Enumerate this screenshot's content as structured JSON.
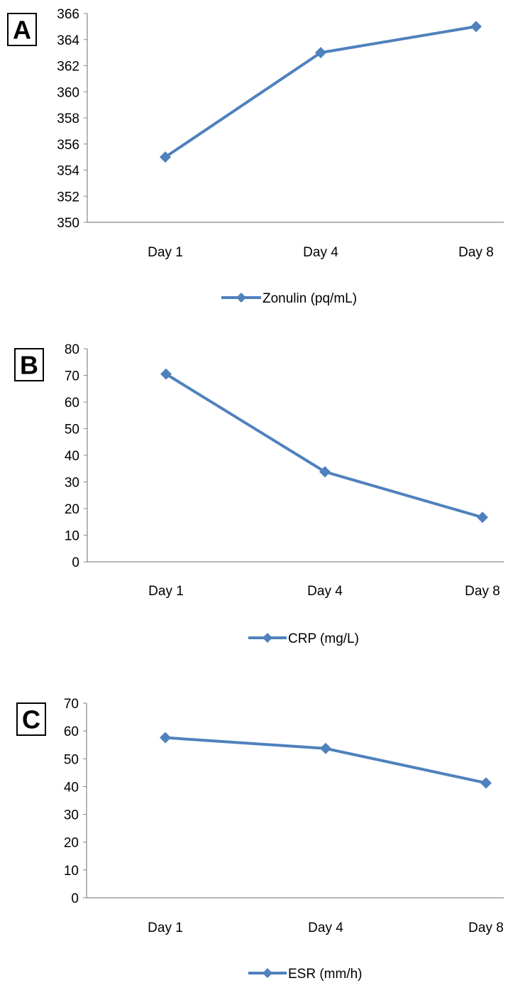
{
  "chart_data": [
    {
      "panel": "A",
      "type": "line",
      "categories": [
        "Day 1",
        "Day 4",
        "Day 8"
      ],
      "series": [
        {
          "name": "Zonulin (pq/mL)",
          "values": [
            355,
            363,
            365
          ]
        }
      ],
      "ylim": [
        350,
        366
      ],
      "ytick_step": 2,
      "xlabel": "",
      "ylabel": "",
      "grid": false,
      "legend": "bottom",
      "color": "#4F81BD"
    },
    {
      "panel": "B",
      "type": "line",
      "categories": [
        "Day 1",
        "Day 4",
        "Day 8"
      ],
      "series": [
        {
          "name": "CRP (mg/L)",
          "values": [
            70.5,
            33.8,
            16.7
          ]
        }
      ],
      "ylim": [
        0,
        80
      ],
      "ytick_step": 10,
      "xlabel": "",
      "ylabel": "",
      "grid": false,
      "legend": "bottom",
      "color": "#4F81BD"
    },
    {
      "panel": "C",
      "type": "line",
      "categories": [
        "Day 1",
        "Day 4",
        "Day 8"
      ],
      "series": [
        {
          "name": "ESR (mm/h)",
          "values": [
            57.6,
            53.7,
            41.3
          ]
        }
      ],
      "ylim": [
        0,
        70
      ],
      "ytick_step": 10,
      "xlabel": "",
      "ylabel": "",
      "grid": false,
      "legend": "bottom",
      "color": "#4F81BD"
    }
  ]
}
